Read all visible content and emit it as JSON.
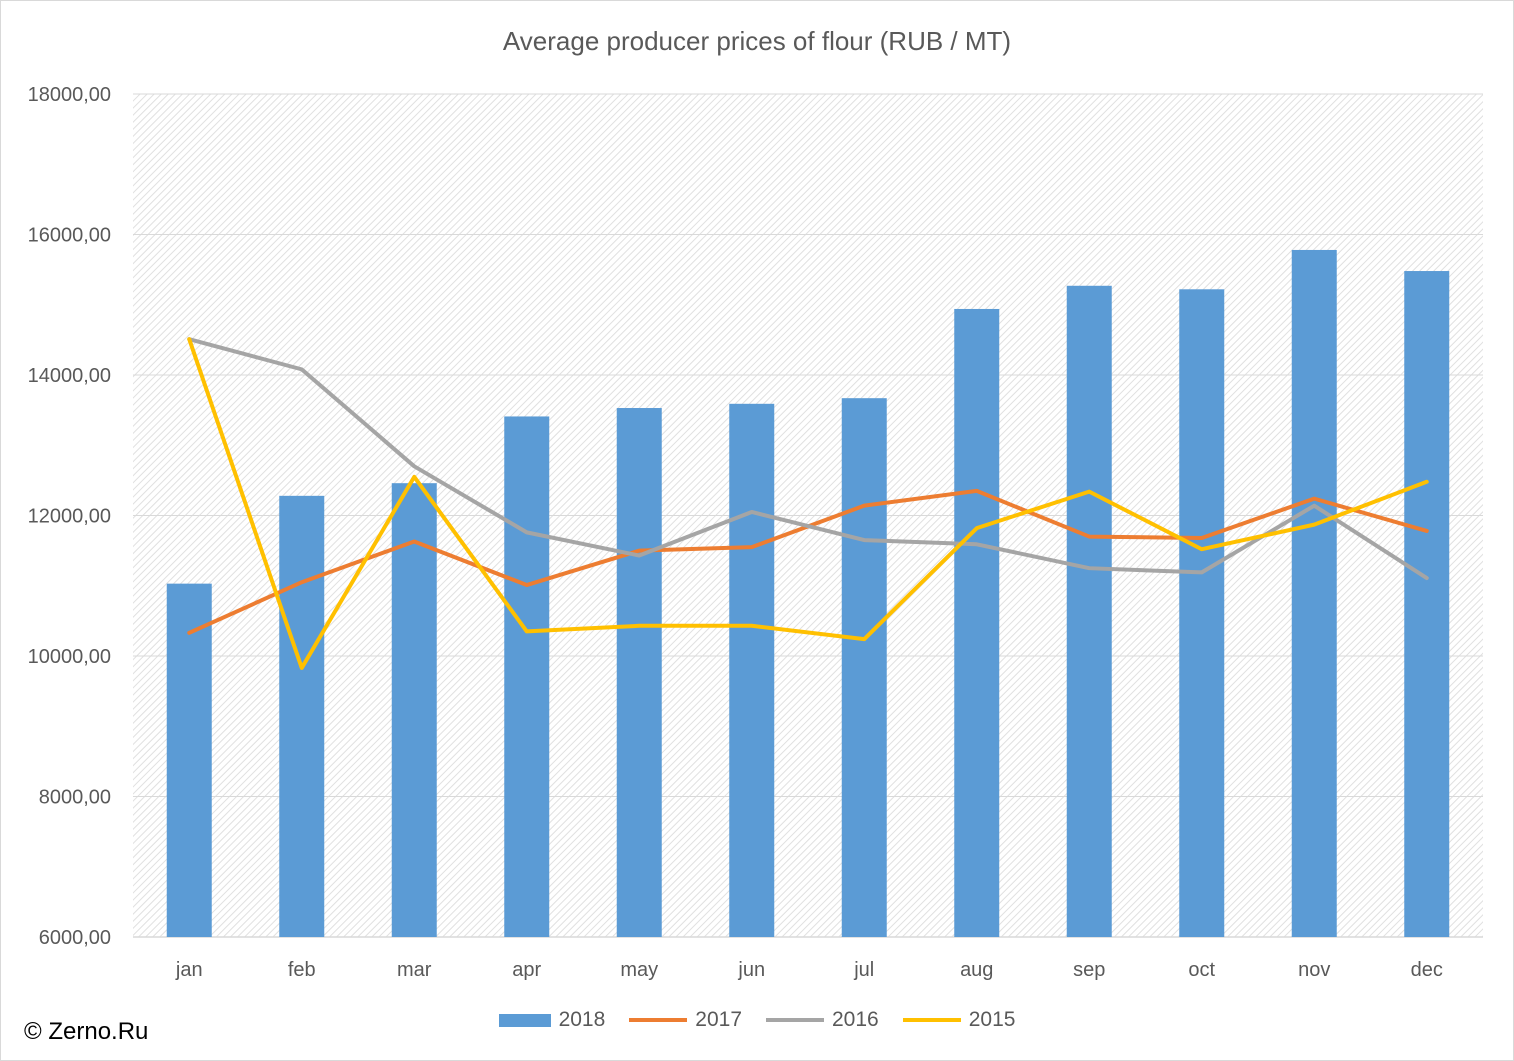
{
  "credit": "© Zerno.Ru",
  "chart_data": {
    "type": "bar+line",
    "title": "Average producer prices of flour (RUB / MT)",
    "categories": [
      "jan",
      "feb",
      "mar",
      "apr",
      "may",
      "jun",
      "jul",
      "aug",
      "sep",
      "oct",
      "nov",
      "dec"
    ],
    "ylim": [
      6000,
      18000
    ],
    "yticks": [
      6000,
      8000,
      10000,
      12000,
      14000,
      16000,
      18000
    ],
    "ytick_labels": [
      "6000,00",
      "8000,00",
      "10000,00",
      "12000,00",
      "14000,00",
      "16000,00",
      "18000,00"
    ],
    "grid": true,
    "legend_position": "bottom",
    "series": [
      {
        "name": "2018",
        "kind": "bar",
        "color": "#5b9bd5",
        "values": [
          11030,
          12280,
          12460,
          13410,
          13530,
          13590,
          13670,
          14940,
          15270,
          15220,
          15780,
          15480
        ]
      },
      {
        "name": "2017",
        "kind": "line",
        "color": "#ed7d31",
        "values": [
          10330,
          11050,
          11630,
          11010,
          11500,
          11550,
          12140,
          12350,
          11700,
          11680,
          12240,
          11780
        ]
      },
      {
        "name": "2016",
        "kind": "line",
        "color": "#a5a5a5",
        "values": [
          14510,
          14080,
          12700,
          11760,
          11430,
          12050,
          11650,
          11590,
          11250,
          11190,
          12140,
          11110
        ]
      },
      {
        "name": "2015",
        "kind": "line",
        "color": "#ffc000",
        "values": [
          14510,
          9830,
          12550,
          10350,
          10430,
          10430,
          10240,
          11820,
          12340,
          11520,
          11870,
          12480
        ]
      }
    ]
  }
}
